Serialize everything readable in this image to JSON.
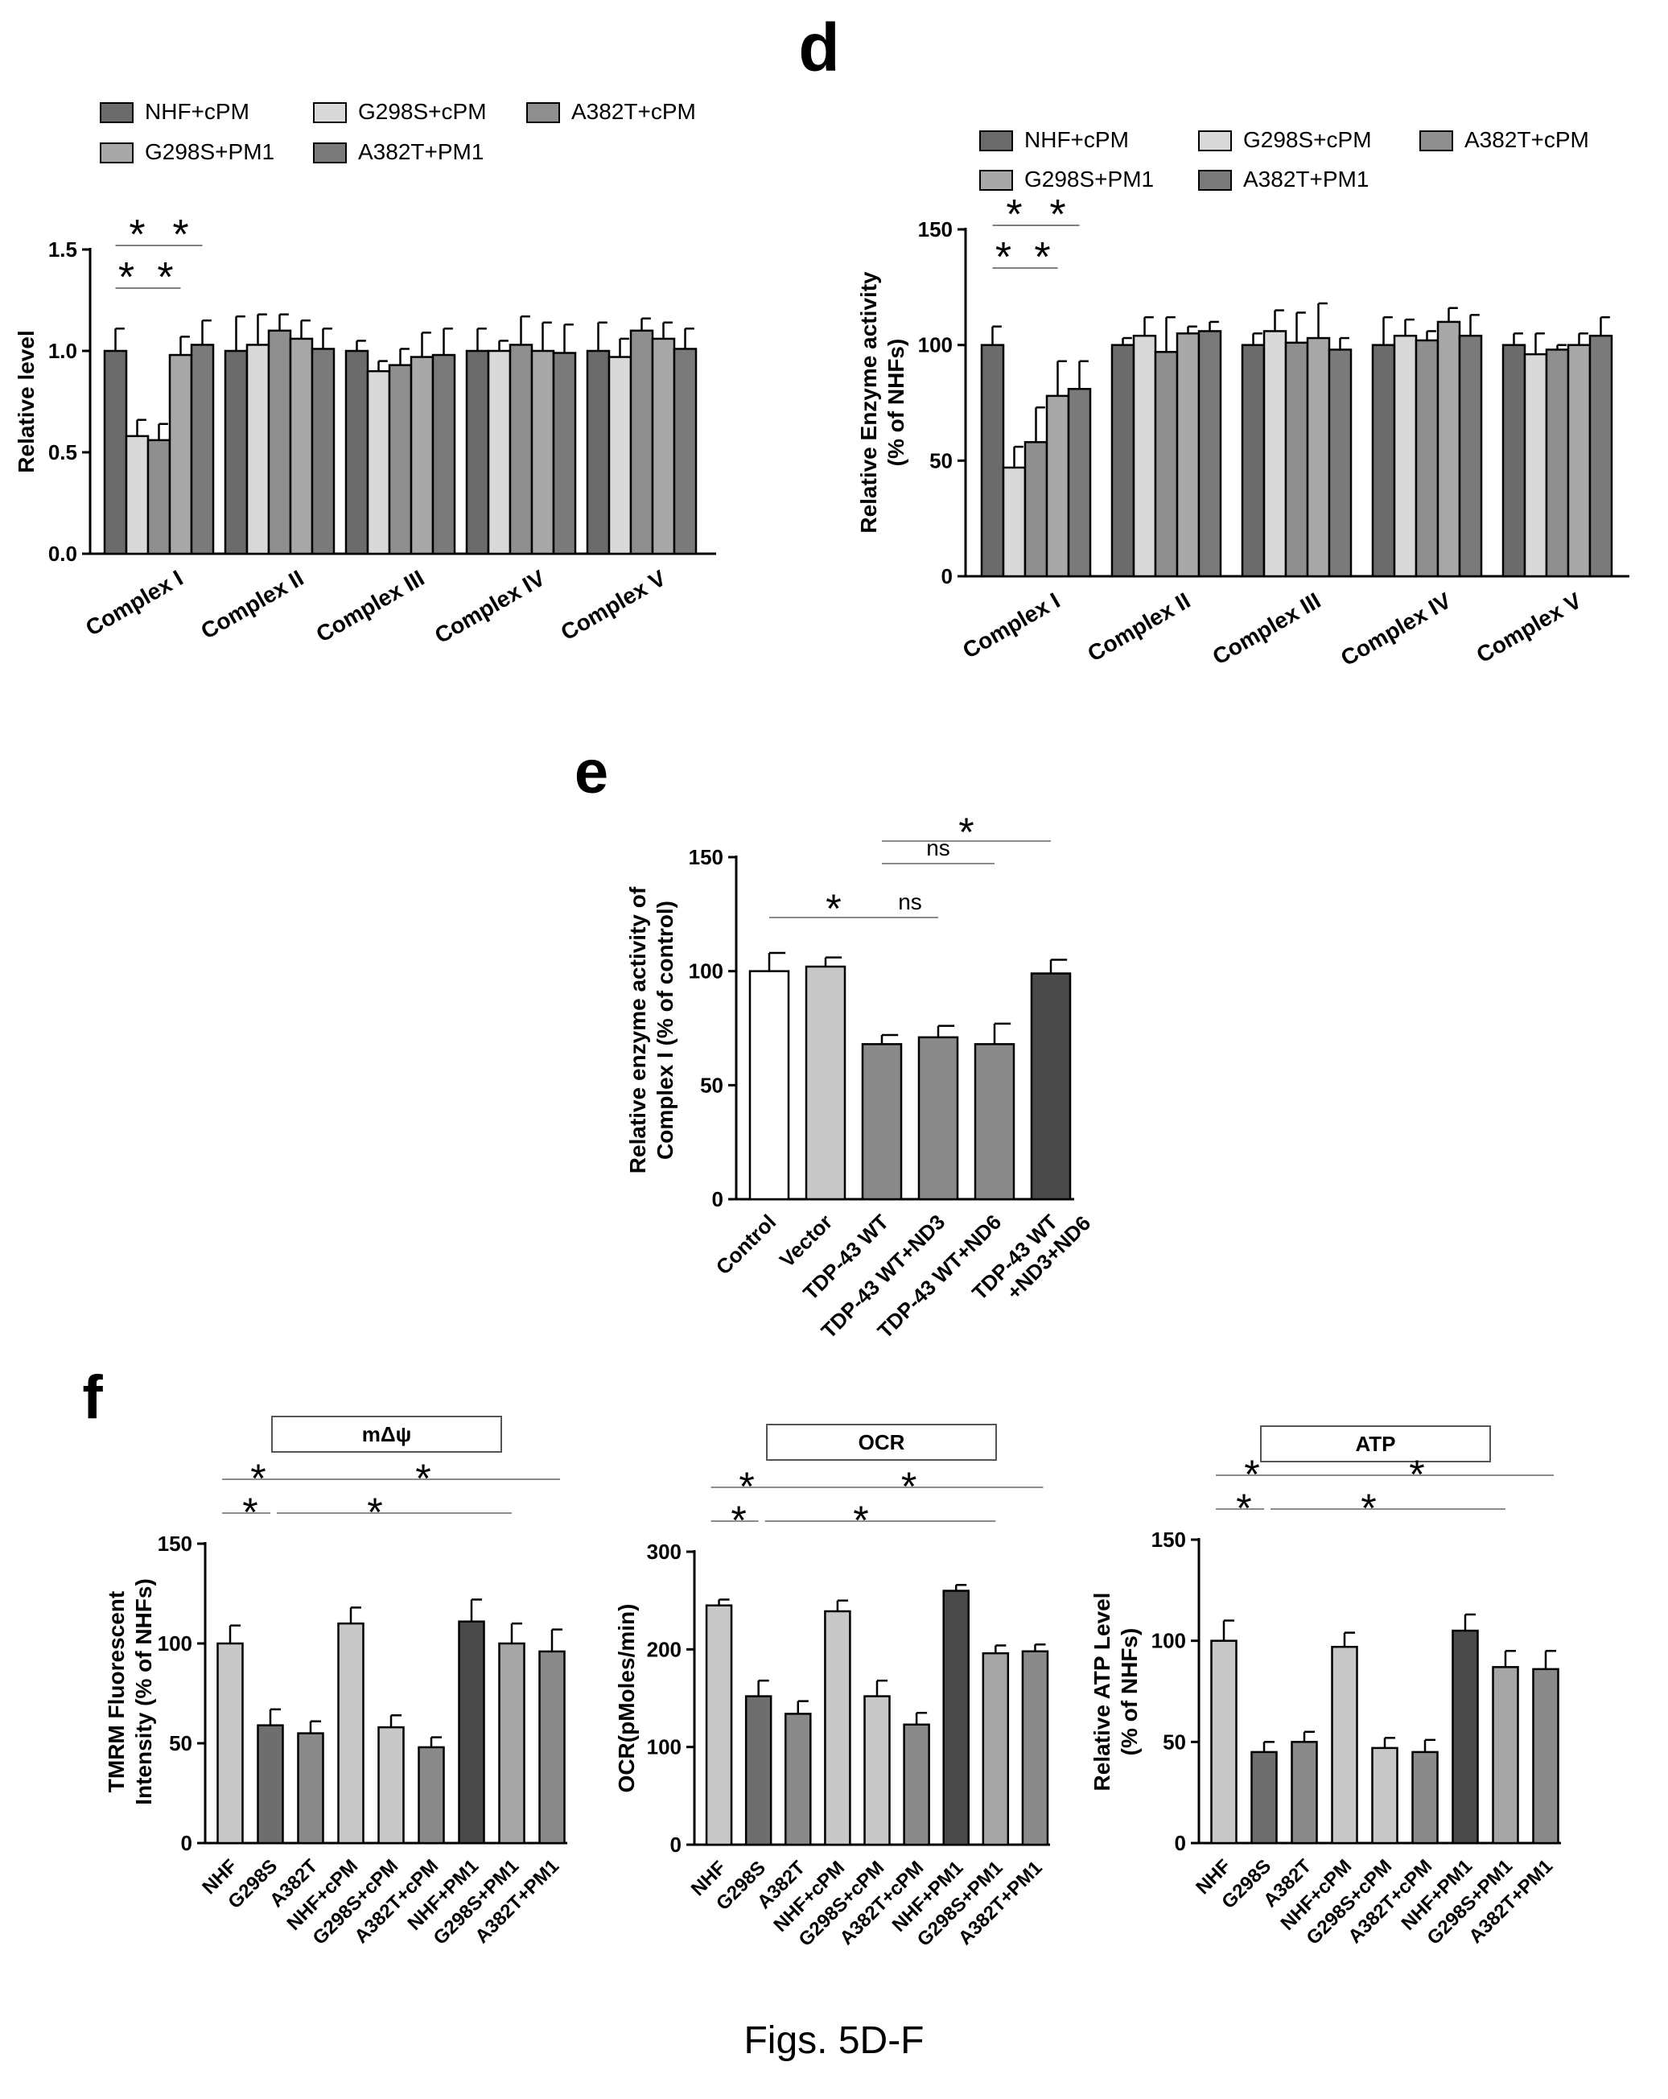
{
  "figure": {
    "caption": "Figs. 5D-F",
    "panel_labels": {
      "d": "d",
      "e": "e",
      "f": "f"
    },
    "colors": {
      "NHF+cPM": "#6b6b6b",
      "G298S+cPM": "#d9d9d9",
      "A382T+cPM": "#8f8f8f",
      "G298S+PM1": "#a8a8a8",
      "A382T+PM1": "#7a7a7a",
      "white": "#ffffff",
      "light": "#c8c8c8",
      "mid": "#8a8a8a",
      "dark": "#4a4a4a"
    }
  },
  "chart_data": [
    {
      "type": "bar",
      "ylabel": "Relative level",
      "yticks": [
        "0.0",
        "0.5",
        "1.0",
        "1.5"
      ],
      "ylim": [
        0,
        1.5
      ],
      "categories": [
        "Complex I",
        "Complex II",
        "Complex III",
        "Complex IV",
        "Complex V"
      ],
      "legend": [
        "NHF+cPM",
        "G298S+cPM",
        "A382T+cPM",
        "G298S+PM1",
        "A382T+PM1"
      ],
      "series": [
        {
          "name": "NHF+cPM",
          "values": [
            1.0,
            1.0,
            1.0,
            1.0,
            1.0
          ],
          "errors": [
            0.11,
            0.17,
            0.05,
            0.11,
            0.14
          ]
        },
        {
          "name": "G298S+cPM",
          "values": [
            0.58,
            1.03,
            0.9,
            1.0,
            0.97
          ],
          "errors": [
            0.08,
            0.15,
            0.05,
            0.05,
            0.09
          ]
        },
        {
          "name": "A382T+cPM",
          "values": [
            0.56,
            1.1,
            0.93,
            1.03,
            1.1
          ],
          "errors": [
            0.08,
            0.08,
            0.08,
            0.14,
            0.06
          ]
        },
        {
          "name": "G298S+PM1",
          "values": [
            0.98,
            1.06,
            0.97,
            1.0,
            1.06
          ],
          "errors": [
            0.09,
            0.09,
            0.12,
            0.14,
            0.08
          ]
        },
        {
          "name": "A382T+PM1",
          "values": [
            1.03,
            1.01,
            0.98,
            0.99,
            1.01
          ],
          "errors": [
            0.12,
            0.1,
            0.13,
            0.14,
            0.1
          ]
        }
      ],
      "significance": [
        "*",
        "*",
        "*",
        "*"
      ]
    },
    {
      "type": "bar",
      "ylabel": "Relative Enzyme activity\n(% of NHFs)",
      "yticks": [
        "0",
        "50",
        "100",
        "150"
      ],
      "ylim": [
        0,
        150
      ],
      "categories": [
        "Complex I",
        "Complex II",
        "Complex III",
        "Complex IV",
        "Complex V"
      ],
      "legend": [
        "NHF+cPM",
        "G298S+cPM",
        "A382T+cPM",
        "G298S+PM1",
        "A382T+PM1"
      ],
      "series": [
        {
          "name": "NHF+cPM",
          "values": [
            100,
            100,
            100,
            100,
            100
          ],
          "errors": [
            8,
            3,
            5,
            12,
            5
          ]
        },
        {
          "name": "G298S+cPM",
          "values": [
            47,
            104,
            106,
            104,
            96
          ],
          "errors": [
            9,
            8,
            9,
            7,
            9
          ]
        },
        {
          "name": "A382T+cPM",
          "values": [
            58,
            97,
            101,
            102,
            98
          ],
          "errors": [
            15,
            15,
            13,
            4,
            2
          ]
        },
        {
          "name": "G298S+PM1",
          "values": [
            78,
            105,
            103,
            110,
            100
          ],
          "errors": [
            15,
            3,
            15,
            6,
            5
          ]
        },
        {
          "name": "A382T+PM1",
          "values": [
            81,
            106,
            98,
            104,
            104
          ],
          "errors": [
            12,
            4,
            5,
            9,
            8
          ]
        }
      ],
      "significance": [
        "*",
        "*",
        "*",
        "*"
      ]
    },
    {
      "type": "bar",
      "ylabel": "Relative enzyme activity of\nComplex I (% of control)",
      "yticks": [
        "0",
        "50",
        "100",
        "150"
      ],
      "ylim": [
        0,
        150
      ],
      "categories": [
        "Control",
        "Vector",
        "TDP-43 WT",
        "TDP-43 WT+ND3",
        "TDP-43 WT+ND6",
        "TDP-43 WT\n+ND3+ND6"
      ],
      "values": [
        100,
        102,
        68,
        71,
        68,
        99
      ],
      "errors": [
        8,
        4,
        4,
        5,
        9,
        6
      ],
      "bar_colors": [
        "#ffffff",
        "#c8c8c8",
        "#8a8a8a",
        "#8a8a8a",
        "#8a8a8a",
        "#4a4a4a"
      ],
      "significance": [
        "*",
        "ns",
        "ns",
        "*"
      ]
    },
    {
      "type": "bar",
      "header": "mΔψ",
      "ylabel": "TMRM Fluorescent\nIntensity (% of NHFs)",
      "yticks": [
        "0",
        "50",
        "100",
        "150"
      ],
      "ylim": [
        0,
        150
      ],
      "categories": [
        "NHF",
        "G298S",
        "A382T",
        "NHF+cPM",
        "G298S+cPM",
        "A382T+cPM",
        "NHF+PM1",
        "G298S+PM1",
        "A382T+PM1"
      ],
      "values": [
        100,
        59,
        55,
        110,
        58,
        48,
        111,
        100,
        96
      ],
      "errors": [
        9,
        8,
        6,
        8,
        6,
        5,
        11,
        10,
        11
      ],
      "bar_colors": [
        "#c8c8c8",
        "#6e6e6e",
        "#8a8a8a",
        "#c8c8c8",
        "#c8c8c8",
        "#8a8a8a",
        "#4a4a4a",
        "#a6a6a6",
        "#8a8a8a"
      ],
      "significance": [
        "*",
        "*",
        "*",
        "*"
      ]
    },
    {
      "type": "bar",
      "header": "OCR",
      "ylabel": "OCR(pMoles/min)",
      "yticks": [
        "0",
        "100",
        "200",
        "300"
      ],
      "ylim": [
        0,
        300
      ],
      "categories": [
        "NHF",
        "G298S",
        "A382T",
        "NHF+cPM",
        "G298S+cPM",
        "A382T+cPM",
        "NHF+PM1",
        "G298S+PM1",
        "A382T+PM1"
      ],
      "values": [
        245,
        152,
        134,
        239,
        152,
        123,
        260,
        196,
        198
      ],
      "errors": [
        6,
        16,
        13,
        11,
        16,
        12,
        6,
        8,
        7
      ],
      "bar_colors": [
        "#c8c8c8",
        "#6e6e6e",
        "#8a8a8a",
        "#c8c8c8",
        "#c8c8c8",
        "#8a8a8a",
        "#4a4a4a",
        "#a6a6a6",
        "#8a8a8a"
      ],
      "significance": [
        "*",
        "*",
        "*",
        "*"
      ]
    },
    {
      "type": "bar",
      "header": "ATP",
      "ylabel": "Relative ATP Level\n(% of NHFs)",
      "yticks": [
        "0",
        "50",
        "100",
        "150"
      ],
      "ylim": [
        0,
        150
      ],
      "categories": [
        "NHF",
        "G298S",
        "A382T",
        "NHF+cPM",
        "G298S+cPM",
        "A382T+cPM",
        "NHF+PM1",
        "G298S+PM1",
        "A382T+PM1"
      ],
      "values": [
        100,
        45,
        50,
        97,
        47,
        45,
        105,
        87,
        86
      ],
      "errors": [
        10,
        5,
        5,
        7,
        5,
        6,
        8,
        8,
        9
      ],
      "bar_colors": [
        "#c8c8c8",
        "#6e6e6e",
        "#8a8a8a",
        "#c8c8c8",
        "#c8c8c8",
        "#8a8a8a",
        "#4a4a4a",
        "#a6a6a6",
        "#8a8a8a"
      ],
      "significance": [
        "*",
        "*",
        "*",
        "*"
      ]
    }
  ]
}
